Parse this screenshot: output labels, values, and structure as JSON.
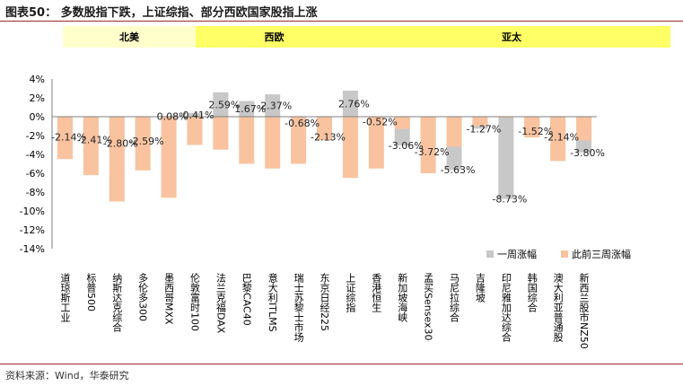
{
  "title": "图表50：  多数股指下跌，上证综指、部分西欧国家股指上涨",
  "regions": [
    {
      "label": "北美"
    },
    {
      "label": "西欧"
    },
    {
      "label": "亚太"
    }
  ],
  "source": "资料来源：Wind，华泰研究",
  "colors": {
    "week": "#c8c8c8",
    "prior": "#f9c3a0",
    "region_na": "#ffffcc",
    "region_other": "#ffff66"
  },
  "chart_data": {
    "type": "bar",
    "title": "多数股指下跌，上证综指、部分西欧国家股指上涨",
    "xlabel": "",
    "ylabel": "",
    "ylim": [
      -14,
      4
    ],
    "yticks": [
      "4%",
      "2%",
      "0%",
      "-2%",
      "-4%",
      "-6%",
      "-8%",
      "-10%",
      "-12%",
      "-14%"
    ],
    "categories": [
      "道琼斯工业",
      "标普500",
      "纳斯达克综合",
      "多伦多300",
      "墨西哥MXX",
      "伦敦富时100",
      "法兰克福DAX",
      "巴黎CAC40",
      "意大利ITLMS",
      "瑞士苏黎士市场",
      "东京日经225",
      "上证综指",
      "香港恒生",
      "新加坡海峡",
      "孟买Sensex30",
      "马尼拉综合",
      "吉隆坡",
      "印尼雅加达综合",
      "韩国综合",
      "澳大利亚普通股",
      "新西兰股市NZ50"
    ],
    "series": [
      {
        "name": "一周涨幅",
        "values": [
          -2.14,
          -2.41,
          -2.8,
          -2.59,
          0.08,
          0.41,
          2.59,
          1.67,
          2.37,
          -0.68,
          -2.13,
          2.76,
          -0.52,
          -3.06,
          -3.72,
          -5.63,
          -1.27,
          -8.73,
          -1.52,
          -2.14,
          -3.8
        ]
      },
      {
        "name": "此前三周涨幅",
        "values": [
          -4.5,
          -6.2,
          -9.0,
          -5.7,
          -8.6,
          -3.0,
          -3.5,
          -5.0,
          -5.5,
          -5.0,
          -2.5,
          -6.5,
          -5.5,
          -1.3,
          -6.0,
          -3.2,
          -1.0,
          -0.1,
          -2.2,
          -4.7,
          -2.5
        ]
      }
    ],
    "data_labels": [
      "-2.14%",
      "-2.41%",
      "-2.80%",
      "-2.59%",
      "0.08%",
      "0.41%",
      "2.59%",
      "1.67%",
      "2.37%",
      "-0.68%",
      "-2.13%",
      "2.76%",
      "-0.52%",
      "-3.06%",
      "-3.72%",
      "-5.63%",
      "-1.27%",
      "-8.73%",
      "-1.52%",
      "-2.14%",
      "-3.80%"
    ],
    "legend": [
      "一周涨幅",
      "此前三周涨幅"
    ],
    "legend_position": "right"
  }
}
